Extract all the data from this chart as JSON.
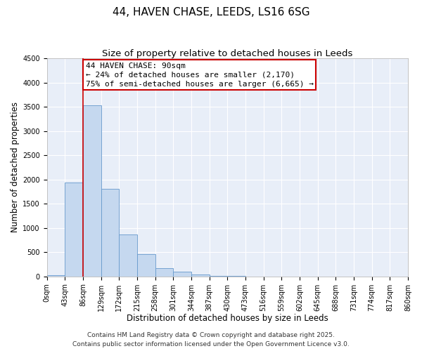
{
  "title": "44, HAVEN CHASE, LEEDS, LS16 6SG",
  "subtitle": "Size of property relative to detached houses in Leeds",
  "xlabel": "Distribution of detached houses by size in Leeds",
  "ylabel": "Number of detached properties",
  "bin_labels": [
    "0sqm",
    "43sqm",
    "86sqm",
    "129sqm",
    "172sqm",
    "215sqm",
    "258sqm",
    "301sqm",
    "344sqm",
    "387sqm",
    "430sqm",
    "473sqm",
    "516sqm",
    "559sqm",
    "602sqm",
    "645sqm",
    "688sqm",
    "731sqm",
    "774sqm",
    "817sqm",
    "860sqm"
  ],
  "bar_values": [
    30,
    1940,
    3530,
    1800,
    870,
    460,
    175,
    100,
    40,
    15,
    5,
    0,
    0,
    0,
    0,
    0,
    0,
    0,
    0,
    0
  ],
  "bar_color": "#c5d8ef",
  "bar_edge_color": "#6699cc",
  "vline_x": 2,
  "vline_color": "#cc0000",
  "ylim": [
    0,
    4500
  ],
  "yticks": [
    0,
    500,
    1000,
    1500,
    2000,
    2500,
    3000,
    3500,
    4000,
    4500
  ],
  "annotation_title": "44 HAVEN CHASE: 90sqm",
  "annotation_line1": "← 24% of detached houses are smaller (2,170)",
  "annotation_line2": "75% of semi-detached houses are larger (6,665) →",
  "annotation_box_color": "#ffffff",
  "annotation_box_edge": "#cc0000",
  "footer_line1": "Contains HM Land Registry data © Crown copyright and database right 2025.",
  "footer_line2": "Contains public sector information licensed under the Open Government Licence v3.0.",
  "background_color": "#e8eef8",
  "title_fontsize": 11,
  "subtitle_fontsize": 9.5,
  "axis_label_fontsize": 8.5,
  "tick_fontsize": 7,
  "annotation_fontsize": 8,
  "footer_fontsize": 6.5
}
